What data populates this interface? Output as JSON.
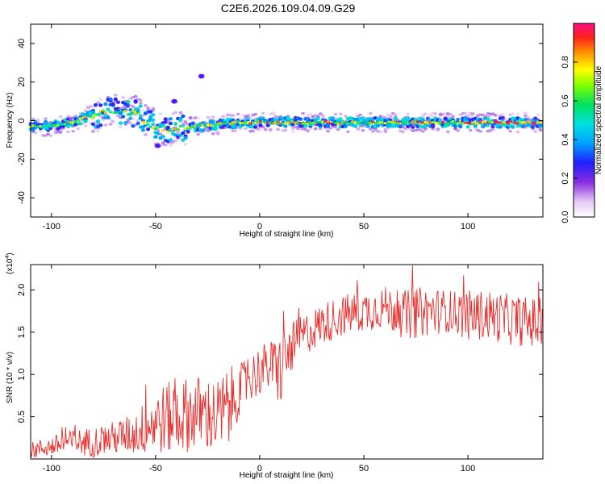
{
  "title": "C2E6.2026.109.04.09.G29",
  "chart_data": [
    {
      "type": "heatmap",
      "xlabel": "Height of straight line (km)",
      "ylabel": "Frequency (Hz)",
      "xlim": [
        -110,
        136
      ],
      "ylim": [
        -50,
        50
      ],
      "xticks": [
        -100,
        -50,
        0,
        50,
        100
      ],
      "yticks": [
        -40,
        -20,
        0,
        20,
        40
      ],
      "colorbar": {
        "label": "Normalized spectral amplitude",
        "range": [
          0,
          1
        ],
        "ticks": [
          "0.0",
          "0.2",
          "0.4",
          "0.6",
          "0.8"
        ],
        "ticks_values": [
          0.0,
          0.2,
          0.4,
          0.6,
          0.8
        ]
      },
      "ridge": {
        "description_points_x": [
          -110,
          -100,
          -90,
          -80,
          -70,
          -60,
          -55,
          -50,
          -45,
          -40,
          -30,
          -20,
          -10,
          0,
          10,
          20,
          30,
          40,
          50,
          60,
          70,
          80,
          90,
          100,
          110,
          120,
          136
        ],
        "frequency_hz": [
          -3,
          -3,
          -1,
          3,
          5,
          4,
          0,
          -3,
          -4,
          -4,
          -3,
          -2,
          -1,
          -1,
          -1,
          -1,
          -1,
          -1,
          -1,
          -1,
          -1,
          -1,
          -1,
          -1,
          -1,
          -1,
          -1
        ]
      },
      "scattered_blobs": [
        {
          "x": -28,
          "y": 23
        },
        {
          "x": -41,
          "y": 10
        },
        {
          "x": -49,
          "y": -13
        }
      ]
    },
    {
      "type": "line",
      "xlabel": "Height of straight line (km)",
      "ylabel": "SNR (10 * v/v)",
      "ylabel_scale": "(x10",
      "ylabel_exponent": "4",
      "ylabel_close": ")",
      "xlim": [
        -110,
        136
      ],
      "ylim": [
        0,
        2.3
      ],
      "xticks": [
        -100,
        -50,
        0,
        50,
        100
      ],
      "yticks": [
        "0.5",
        "1.0",
        "1.5",
        "2.0"
      ],
      "yticks_values": [
        0.5,
        1.0,
        1.5,
        2.0
      ],
      "color": "#e8302e",
      "series_envelope": {
        "x": [
          -110,
          -100,
          -90,
          -80,
          -70,
          -60,
          -50,
          -40,
          -30,
          -20,
          -15,
          -10,
          -5,
          0,
          5,
          10,
          15,
          20,
          30,
          40,
          50,
          60,
          70,
          80,
          90,
          100,
          110,
          120,
          136
        ],
        "mean": [
          0.1,
          0.15,
          0.2,
          0.2,
          0.25,
          0.3,
          0.45,
          0.5,
          0.55,
          0.5,
          0.6,
          0.8,
          0.95,
          1.05,
          1.1,
          1.05,
          1.3,
          1.45,
          1.6,
          1.7,
          1.75,
          1.8,
          1.7,
          1.75,
          1.75,
          1.7,
          1.7,
          1.65,
          1.6
        ],
        "spread": [
          0.1,
          0.12,
          0.15,
          0.18,
          0.2,
          0.25,
          0.4,
          0.45,
          0.45,
          0.45,
          0.5,
          0.3,
          0.3,
          0.3,
          0.3,
          0.45,
          0.3,
          0.25,
          0.25,
          0.25,
          0.25,
          0.25,
          0.3,
          0.3,
          0.25,
          0.3,
          0.3,
          0.3,
          0.3
        ]
      }
    }
  ]
}
